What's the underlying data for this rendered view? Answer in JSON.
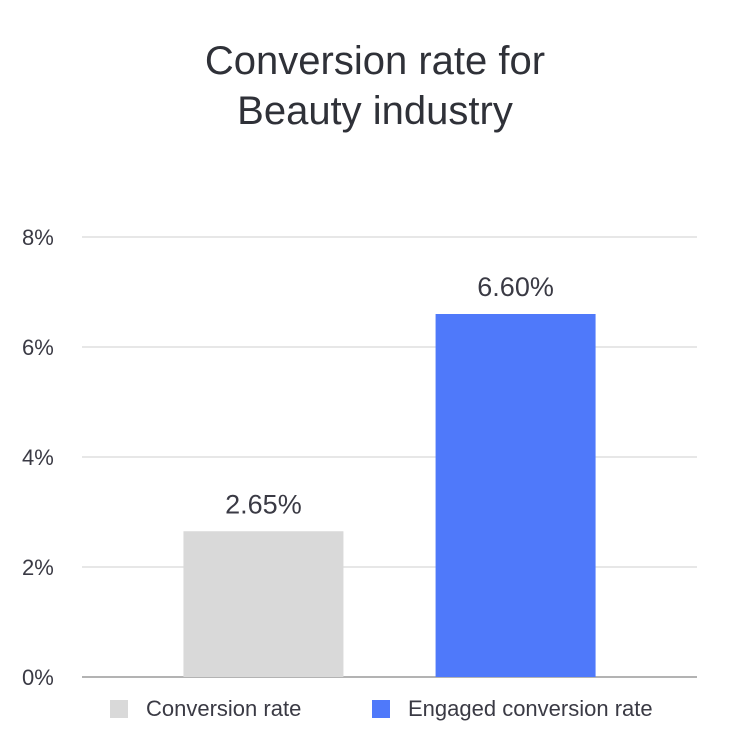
{
  "chart_data": {
    "type": "bar",
    "title": [
      "Conversion rate for",
      "Beauty industry"
    ],
    "categories": [
      "Conversion rate",
      "Engaged conversion rate"
    ],
    "values": [
      2.65,
      6.6
    ],
    "data_labels": [
      "2.65%",
      "6.60%"
    ],
    "colors": [
      "#d9d9d9",
      "#4f79fa"
    ],
    "ylim": [
      0,
      8
    ],
    "yticks": [
      0,
      2,
      4,
      6,
      8
    ],
    "ytick_labels": [
      "0%",
      "2%",
      "4%",
      "6%",
      "8%"
    ],
    "grid": true,
    "legend_position": "bottom"
  }
}
